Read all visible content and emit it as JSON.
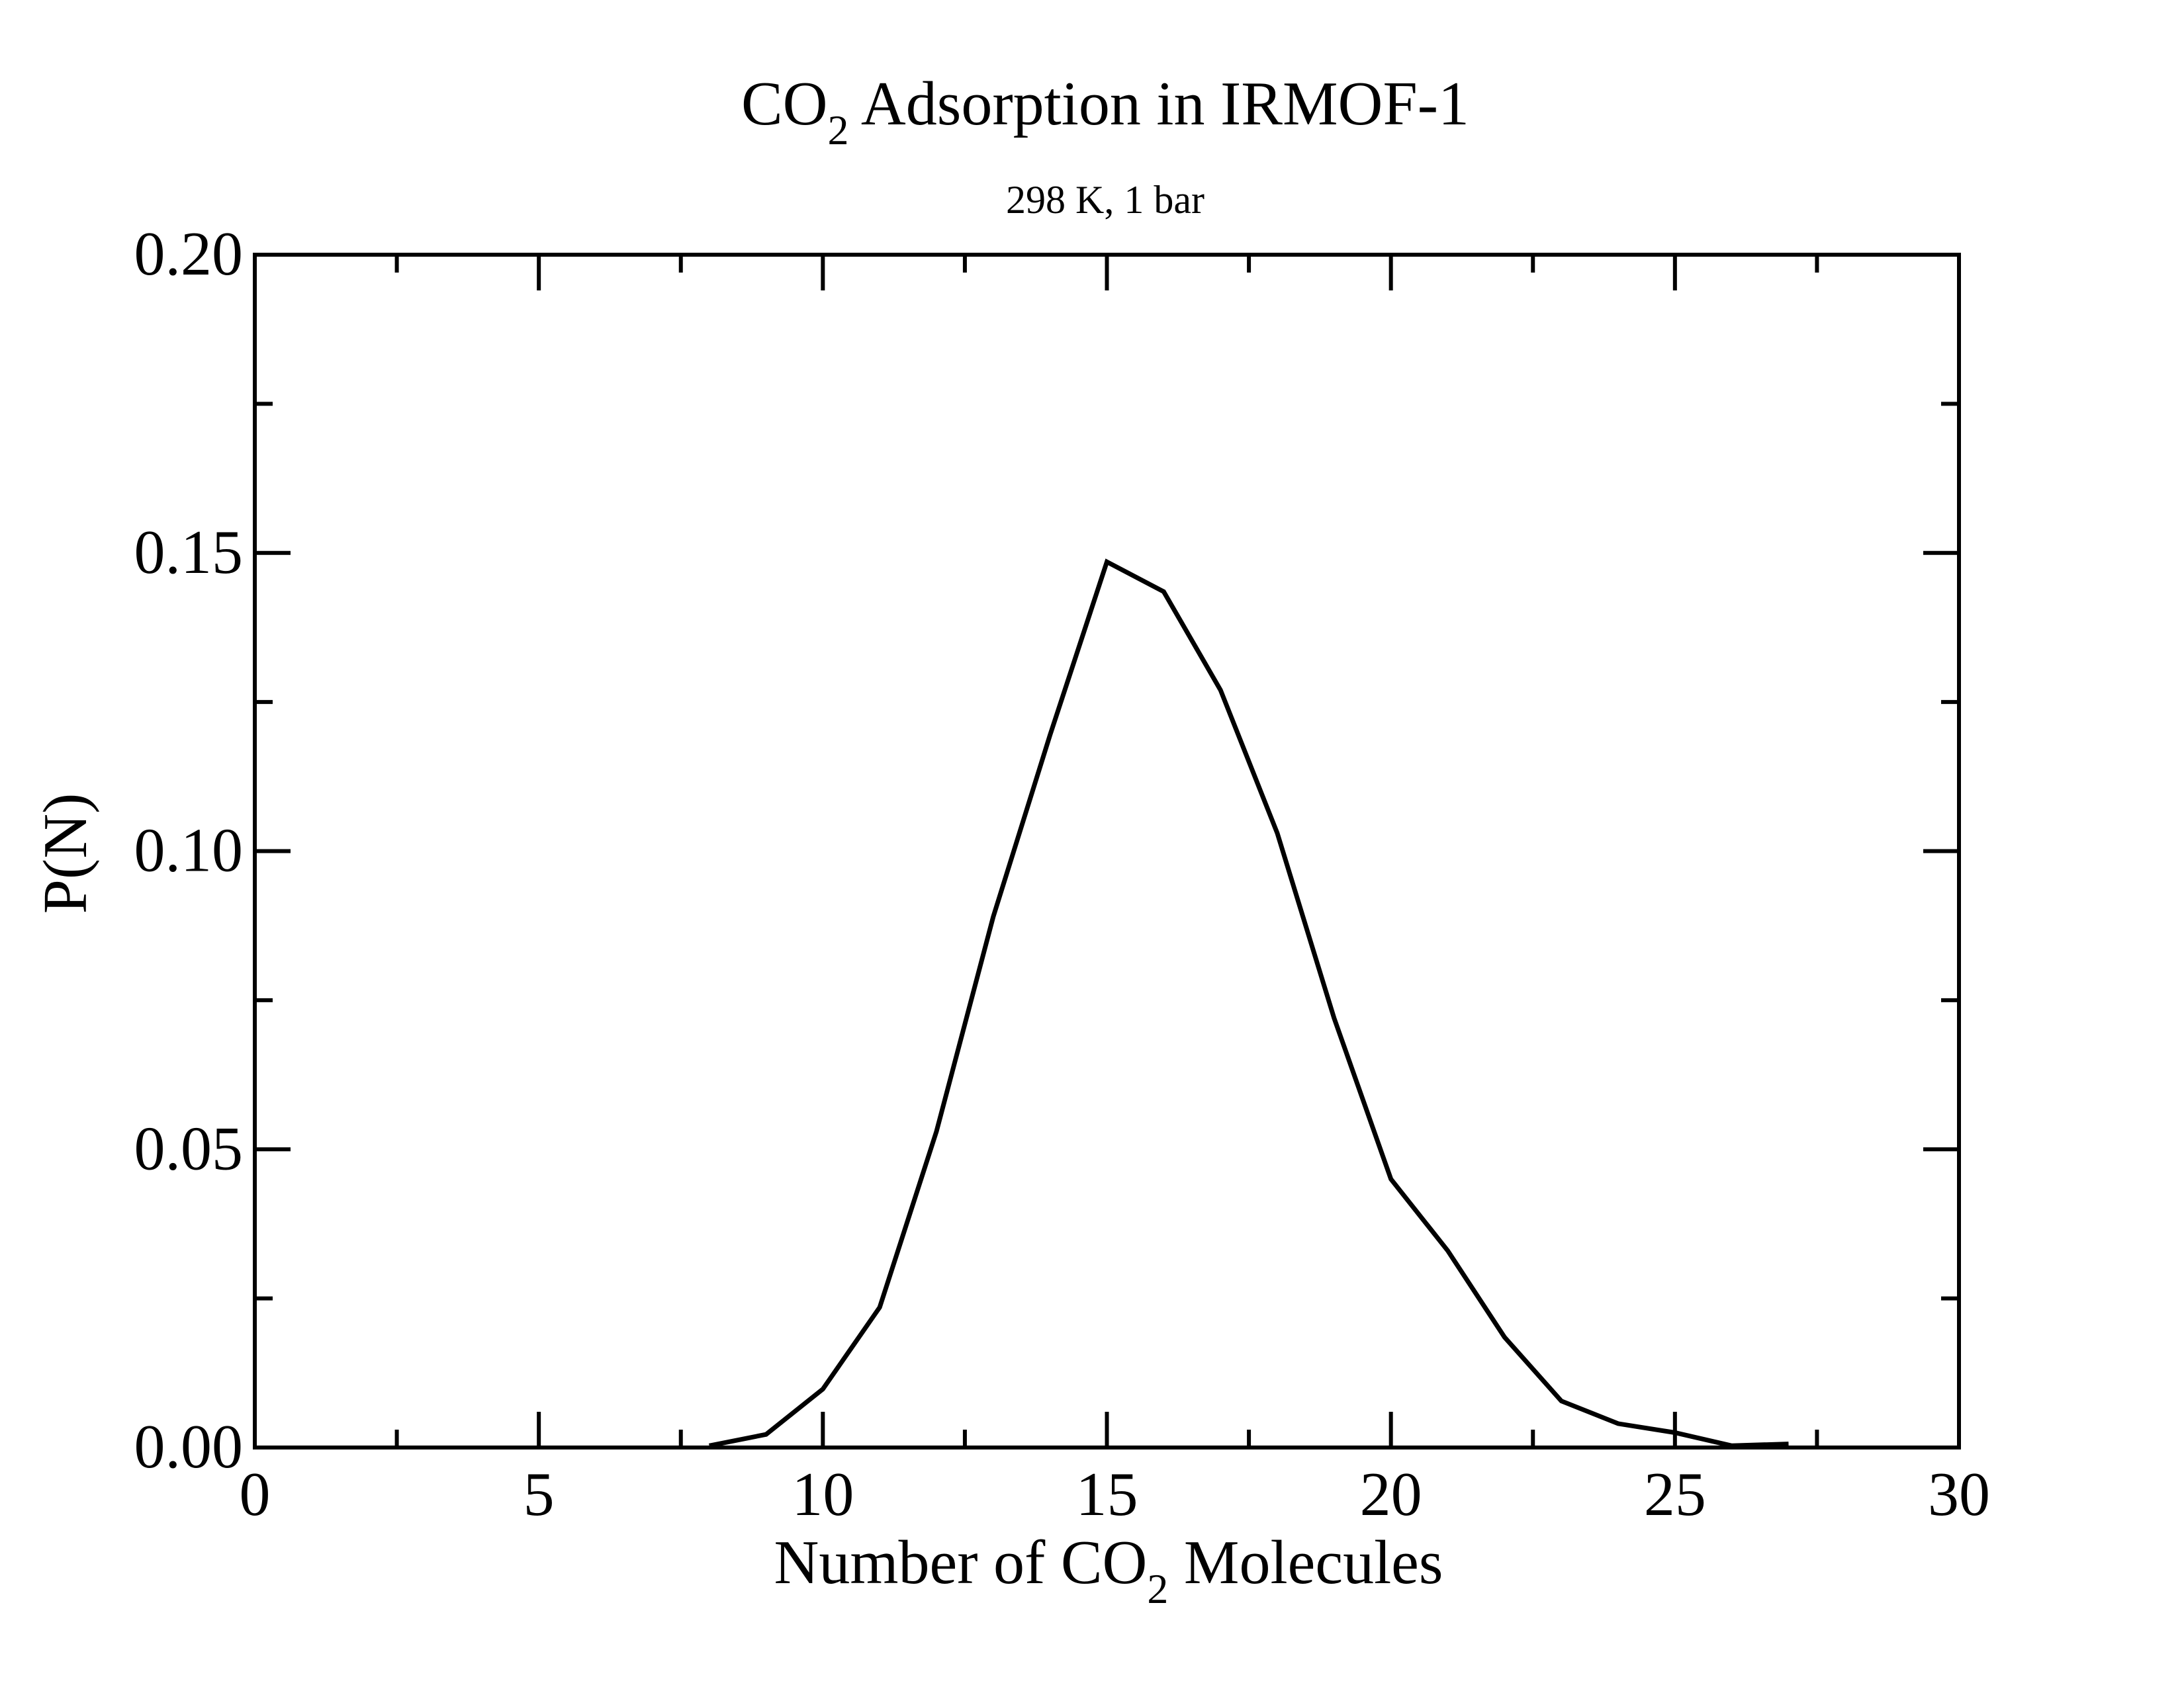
{
  "chart_data": {
    "type": "line",
    "title": {
      "main": "CO",
      "sub": "2",
      "rest": " Adsorption in IRMOF-1"
    },
    "subtitle": "298 K, 1 bar",
    "xlabel": {
      "main": "Number of CO",
      "sub": "2",
      "rest": " Molecules"
    },
    "ylabel": "P(N)",
    "xlim": [
      0,
      30
    ],
    "ylim": [
      0,
      0.2
    ],
    "x_ticks": [
      "0",
      "5",
      "10",
      "15",
      "20",
      "25",
      "30"
    ],
    "y_ticks": [
      "0.00",
      "0.05",
      "0.10",
      "0.15",
      "0.20"
    ],
    "grid": false,
    "series": [
      {
        "color": "#000000",
        "x": [
          8,
          9,
          10,
          11,
          12,
          13,
          14,
          15,
          16,
          17,
          18,
          19,
          20,
          21,
          22,
          23,
          24,
          25,
          26,
          27
        ],
        "y": [
          0.0003,
          0.0022,
          0.0098,
          0.0235,
          0.053,
          0.089,
          0.1195,
          0.1485,
          0.1435,
          0.127,
          0.103,
          0.072,
          0.045,
          0.033,
          0.0185,
          0.0078,
          0.004,
          0.0025,
          0.0003,
          0.0006
        ]
      }
    ]
  }
}
